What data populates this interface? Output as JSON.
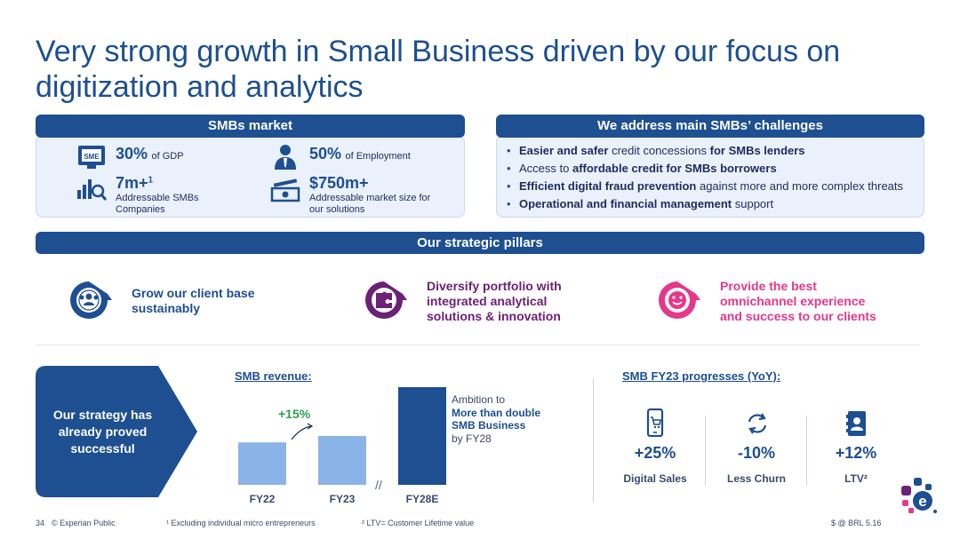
{
  "title": "Very strong growth in Small Business driven by our focus on digitization and analytics",
  "smb_market": {
    "header": "SMBs market",
    "stats": [
      {
        "value": "30%",
        "label": "of GDP",
        "icon": "sme-icon"
      },
      {
        "value": "50%",
        "label": "of Employment",
        "icon": "employee-icon"
      },
      {
        "value": "7m+",
        "sup": "1",
        "label": "Addressable SMBs Companies",
        "icon": "chart-magnifier-icon"
      },
      {
        "value": "$750m+",
        "label": "Addressable market size for our solutions",
        "icon": "money-icon"
      }
    ]
  },
  "challenges": {
    "header": "We address main SMBs’ challenges",
    "items": [
      {
        "b1": "Easier and safer",
        "t1": " credit concessions ",
        "b2": "for SMBs lenders",
        "t2": ""
      },
      {
        "b1": "",
        "t1": "Access to ",
        "b2": "affordable credit for SMBs borrowers",
        "t2": ""
      },
      {
        "b1": "Efficient digital fraud prevention",
        "t1": " against more and more complex threats",
        "b2": "",
        "t2": ""
      },
      {
        "b1": "Operational and financial management",
        "t1": " support",
        "b2": "",
        "t2": ""
      }
    ]
  },
  "pillars": {
    "header": "Our strategic pillars",
    "items": [
      {
        "text": "Grow our client base sustainably",
        "color": "#1d4f91"
      },
      {
        "text": "Diversify portfolio with integrated analytical solutions & innovation",
        "color": "#6d2077"
      },
      {
        "text": "Provide the best omnichannel experience and success to our clients",
        "color": "#e63888"
      }
    ]
  },
  "strategy": {
    "text": "Our strategy has already proved successful"
  },
  "revenue": {
    "label": "SMB revenue:",
    "growth": "+15%",
    "ambition_prefix": "Ambition to",
    "ambition_bold": "More than double SMB Business",
    "ambition_suffix": "by FY28"
  },
  "chart_data": {
    "type": "bar",
    "categories": [
      "FY22",
      "FY23",
      "FY28E"
    ],
    "values": [
      1.0,
      1.15,
      2.3
    ],
    "colors": [
      "#8ab4e8",
      "#8ab4e8",
      "#1d4f91"
    ],
    "title": "SMB revenue:",
    "annotations": [
      "+15%"
    ]
  },
  "progress": {
    "label": "SMB FY23 progresses (YoY):",
    "kpis": [
      {
        "value": "+25%",
        "label": "Digital Sales",
        "icon": "mobile-cart-icon"
      },
      {
        "value": "-10%",
        "label": "Less Churn",
        "icon": "refresh-icon"
      },
      {
        "value": "+12%",
        "label": "LTV²",
        "icon": "profile-card-icon"
      }
    ]
  },
  "footer": {
    "page": "34",
    "classification": "© Experian Public",
    "note1": "¹ Excluding individual micro entrepreneurs",
    "note2": "² LTV= Customer Lifetime value",
    "currency": "$ @ BRL 5.16"
  }
}
